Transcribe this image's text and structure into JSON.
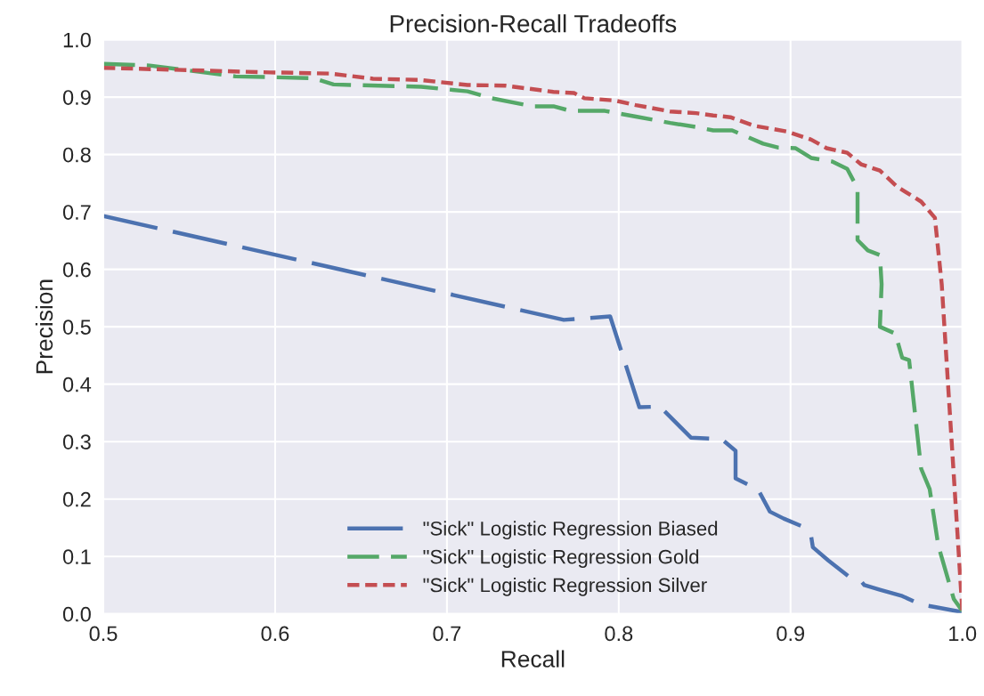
{
  "chart_data": {
    "type": "line",
    "title": "Precision-Recall Tradeoffs",
    "xlabel": "Recall",
    "ylabel": "Precision",
    "xlim": [
      0.5,
      1.0
    ],
    "ylim": [
      0.0,
      1.0
    ],
    "xticks": [
      0.5,
      0.6,
      0.7,
      0.8,
      0.9,
      {
        "value": 1,
        "label": "1.0"
      }
    ],
    "yticks": [
      {
        "value": 0,
        "label": "0.0"
      },
      0.1,
      0.2,
      0.3,
      0.4,
      0.5,
      0.6,
      0.7,
      0.8,
      0.9,
      {
        "value": 1,
        "label": "1.0"
      }
    ],
    "grid": true,
    "legend": "bottom",
    "marker": "none",
    "series": [
      {
        "name": "\"Sick\" Logistic Regression Biased",
        "color": "#4c72b0",
        "line_style": "dashed",
        "x": [
          0.5,
          0.768,
          0.795,
          0.812,
          0.824,
          0.842,
          0.86,
          0.868,
          0.868,
          0.881,
          0.888,
          0.896,
          0.907,
          0.912,
          0.913,
          0.922,
          0.934,
          0.941,
          0.943,
          0.952,
          0.965,
          0.976,
          0.984,
          1.0
        ],
        "values": [
          0.693,
          0.512,
          0.518,
          0.36,
          0.361,
          0.307,
          0.304,
          0.284,
          0.236,
          0.217,
          0.178,
          0.166,
          0.152,
          0.135,
          0.116,
          0.093,
          0.065,
          0.057,
          0.05,
          0.042,
          0.031,
          0.016,
          0.012,
          0.003
        ]
      },
      {
        "name": "\"Sick\" Logistic Regression Gold",
        "color": "#55a868",
        "line_style": "dashed",
        "x": [
          0.5,
          0.527,
          0.577,
          0.622,
          0.634,
          0.685,
          0.712,
          0.726,
          0.75,
          0.762,
          0.772,
          0.792,
          0.81,
          0.83,
          0.845,
          0.855,
          0.866,
          0.884,
          0.893,
          0.903,
          0.912,
          0.924,
          0.933,
          0.939,
          0.939,
          0.945,
          0.952,
          0.953,
          0.952,
          0.961,
          0.965,
          0.969,
          0.976,
          0.981,
          0.986,
          0.995,
          1.0
        ],
        "values": [
          0.958,
          0.955,
          0.936,
          0.933,
          0.922,
          0.918,
          0.91,
          0.898,
          0.884,
          0.884,
          0.876,
          0.876,
          0.866,
          0.855,
          0.848,
          0.842,
          0.842,
          0.819,
          0.812,
          0.811,
          0.794,
          0.788,
          0.775,
          0.741,
          0.651,
          0.633,
          0.625,
          0.574,
          0.5,
          0.488,
          0.446,
          0.442,
          0.253,
          0.217,
          0.119,
          0.026,
          0.005
        ]
      },
      {
        "name": "\"Sick\" Logistic Regression Silver",
        "color": "#c44e52",
        "line_style": "dotted",
        "x": [
          0.5,
          0.597,
          0.632,
          0.657,
          0.684,
          0.712,
          0.734,
          0.762,
          0.774,
          0.78,
          0.798,
          0.81,
          0.83,
          0.845,
          0.855,
          0.865,
          0.879,
          0.898,
          0.912,
          0.921,
          0.933,
          0.941,
          0.952,
          0.962,
          0.976,
          0.984,
          0.988,
          1.0
        ],
        "values": [
          0.951,
          0.943,
          0.941,
          0.932,
          0.93,
          0.921,
          0.92,
          0.909,
          0.907,
          0.898,
          0.894,
          0.886,
          0.875,
          0.872,
          0.868,
          0.865,
          0.85,
          0.84,
          0.826,
          0.811,
          0.803,
          0.783,
          0.772,
          0.744,
          0.718,
          0.69,
          0.574,
          0.005
        ]
      }
    ]
  }
}
